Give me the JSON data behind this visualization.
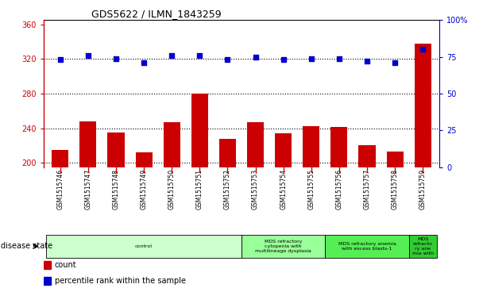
{
  "title": "GDS5622 / ILMN_1843259",
  "samples": [
    "GSM1515746",
    "GSM1515747",
    "GSM1515748",
    "GSM1515749",
    "GSM1515750",
    "GSM1515751",
    "GSM1515752",
    "GSM1515753",
    "GSM1515754",
    "GSM1515755",
    "GSM1515756",
    "GSM1515757",
    "GSM1515758",
    "GSM1515759"
  ],
  "counts": [
    215,
    248,
    235,
    212,
    247,
    280,
    228,
    247,
    234,
    242,
    241,
    220,
    213,
    338
  ],
  "percentile_ranks": [
    73,
    76,
    74,
    71,
    76,
    76,
    73,
    75,
    73,
    74,
    74,
    72,
    71,
    80
  ],
  "ylim_left": [
    195,
    365
  ],
  "ylim_right": [
    0,
    100
  ],
  "yticks_left": [
    200,
    240,
    280,
    320,
    360
  ],
  "yticks_right": [
    0,
    25,
    50,
    75,
    100
  ],
  "bar_color": "#cc0000",
  "dot_color": "#0000cc",
  "background_color": "#ffffff",
  "xtick_bg_color": "#c8c8c8",
  "disease_groups": [
    {
      "label": "control",
      "start": 0,
      "end": 7,
      "color": "#ccffcc"
    },
    {
      "label": "MDS refractory\ncytopenia with\nmultilineage dysplasia",
      "start": 7,
      "end": 10,
      "color": "#99ff99"
    },
    {
      "label": "MDS refractory anemia\nwith excess blasts-1",
      "start": 10,
      "end": 13,
      "color": "#55ee55"
    },
    {
      "label": "MDS\nrefracto\nry ane\nmia with",
      "start": 13,
      "end": 14,
      "color": "#33cc33"
    }
  ],
  "disease_label": "disease state",
  "legend_count": "count",
  "legend_percentile": "percentile rank within the sample"
}
